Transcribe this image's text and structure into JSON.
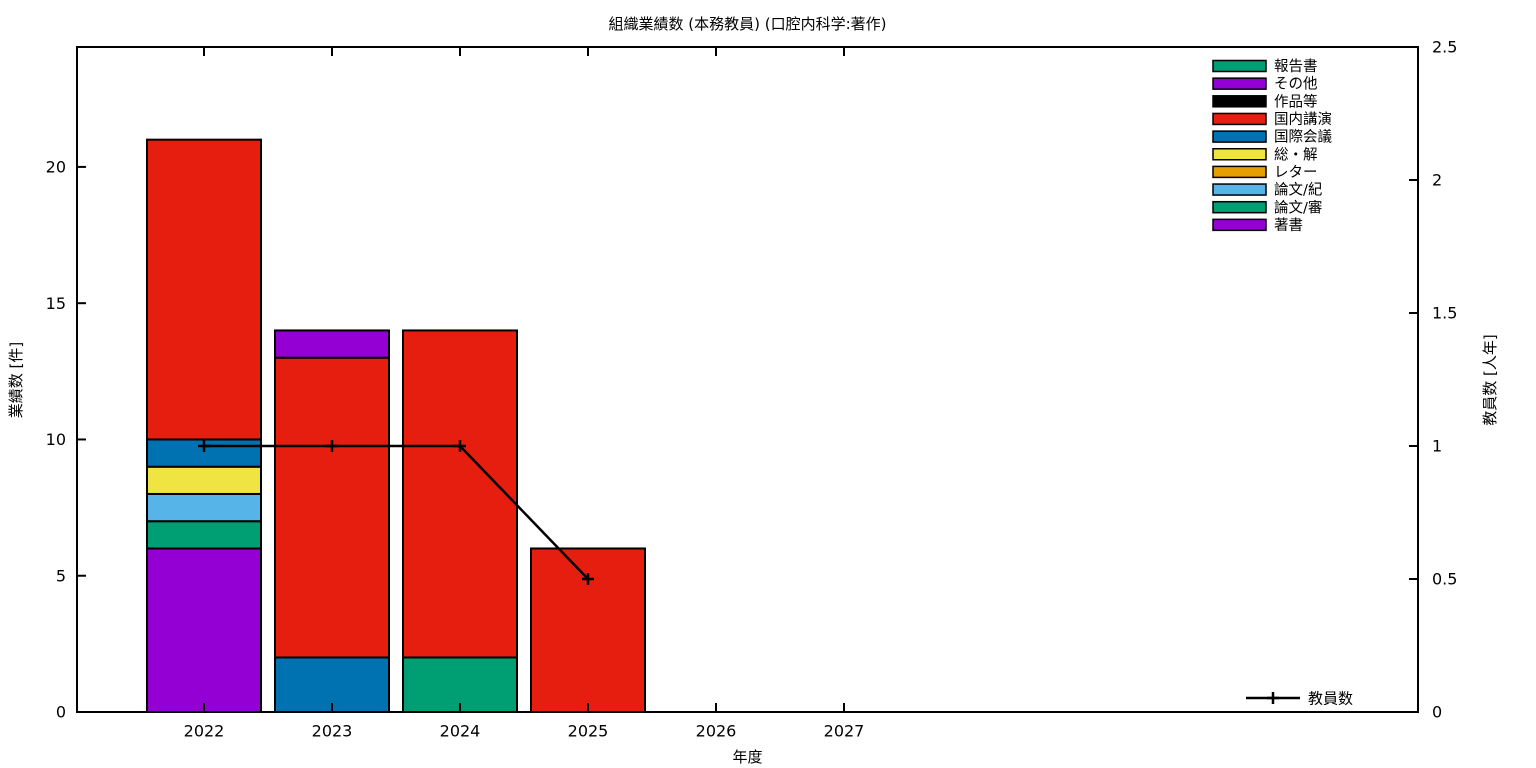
{
  "chart_data": {
    "type": "bar",
    "subtype": "stacked-bar-with-line-overlay",
    "title": "組織業績数 (本務教員) (口腔内科学:著作)",
    "xlabel": "年度",
    "ylabel_left": "業績数 [件]",
    "ylabel_right": "教員数 [人年]",
    "categories": [
      "2022",
      "2023",
      "2024",
      "2025",
      "2026",
      "2027"
    ],
    "y1_ticks": [
      "0",
      "5",
      "10",
      "15",
      "20"
    ],
    "y1_lim": [
      0,
      24.4
    ],
    "y2_ticks": [
      "0",
      "0.5",
      "1",
      "1.5",
      "2",
      "2.5"
    ],
    "y2_lim": [
      0,
      2.5
    ],
    "grid": false,
    "bar_series_bottom_to_top": [
      {
        "name": "著書",
        "color": "#9400d3",
        "values": [
          6,
          0,
          0,
          0,
          0,
          0
        ]
      },
      {
        "name": "論文/審",
        "color": "#009e73",
        "values": [
          1,
          0,
          2,
          0,
          0,
          0
        ]
      },
      {
        "name": "論文/紀",
        "color": "#56b4e9",
        "values": [
          1,
          0,
          0,
          0,
          0,
          0
        ]
      },
      {
        "name": "レター",
        "color": "#e69f00",
        "values": [
          0,
          0,
          0,
          0,
          0,
          0
        ]
      },
      {
        "name": "総・解",
        "color": "#f0e442",
        "values": [
          1,
          0,
          0,
          0,
          0,
          0
        ]
      },
      {
        "name": "国際会議",
        "color": "#0072b2",
        "values": [
          1,
          2,
          0,
          0,
          0,
          0
        ]
      },
      {
        "name": "国内講演",
        "color": "#e51e10",
        "values": [
          11,
          11,
          12,
          6,
          0,
          0
        ]
      },
      {
        "name": "作品等",
        "color": "#000000",
        "values": [
          0,
          0,
          0,
          0,
          0,
          0
        ]
      },
      {
        "name": "その他",
        "color": "#9400d3",
        "values": [
          0,
          1,
          0,
          0,
          0,
          0
        ]
      },
      {
        "name": "報告書",
        "color": "#009e73",
        "values": [
          0,
          0,
          0,
          0,
          0,
          0
        ]
      }
    ],
    "bar_totals": [
      21,
      14,
      14,
      6,
      0,
      0
    ],
    "line_series": {
      "name": "教員数",
      "color": "#000000",
      "marker": "plus",
      "values": [
        1,
        1,
        1,
        0.5,
        null,
        null
      ]
    },
    "legend": {
      "position": "top-right",
      "order_top_to_bottom": [
        "報告書",
        "その他",
        "作品等",
        "国内講演",
        "国際会議",
        "総・解",
        "レター",
        "論文/紀",
        "論文/審",
        "著書"
      ]
    },
    "line_legend": {
      "position": "bottom-right-inside",
      "label": "教員数"
    }
  }
}
